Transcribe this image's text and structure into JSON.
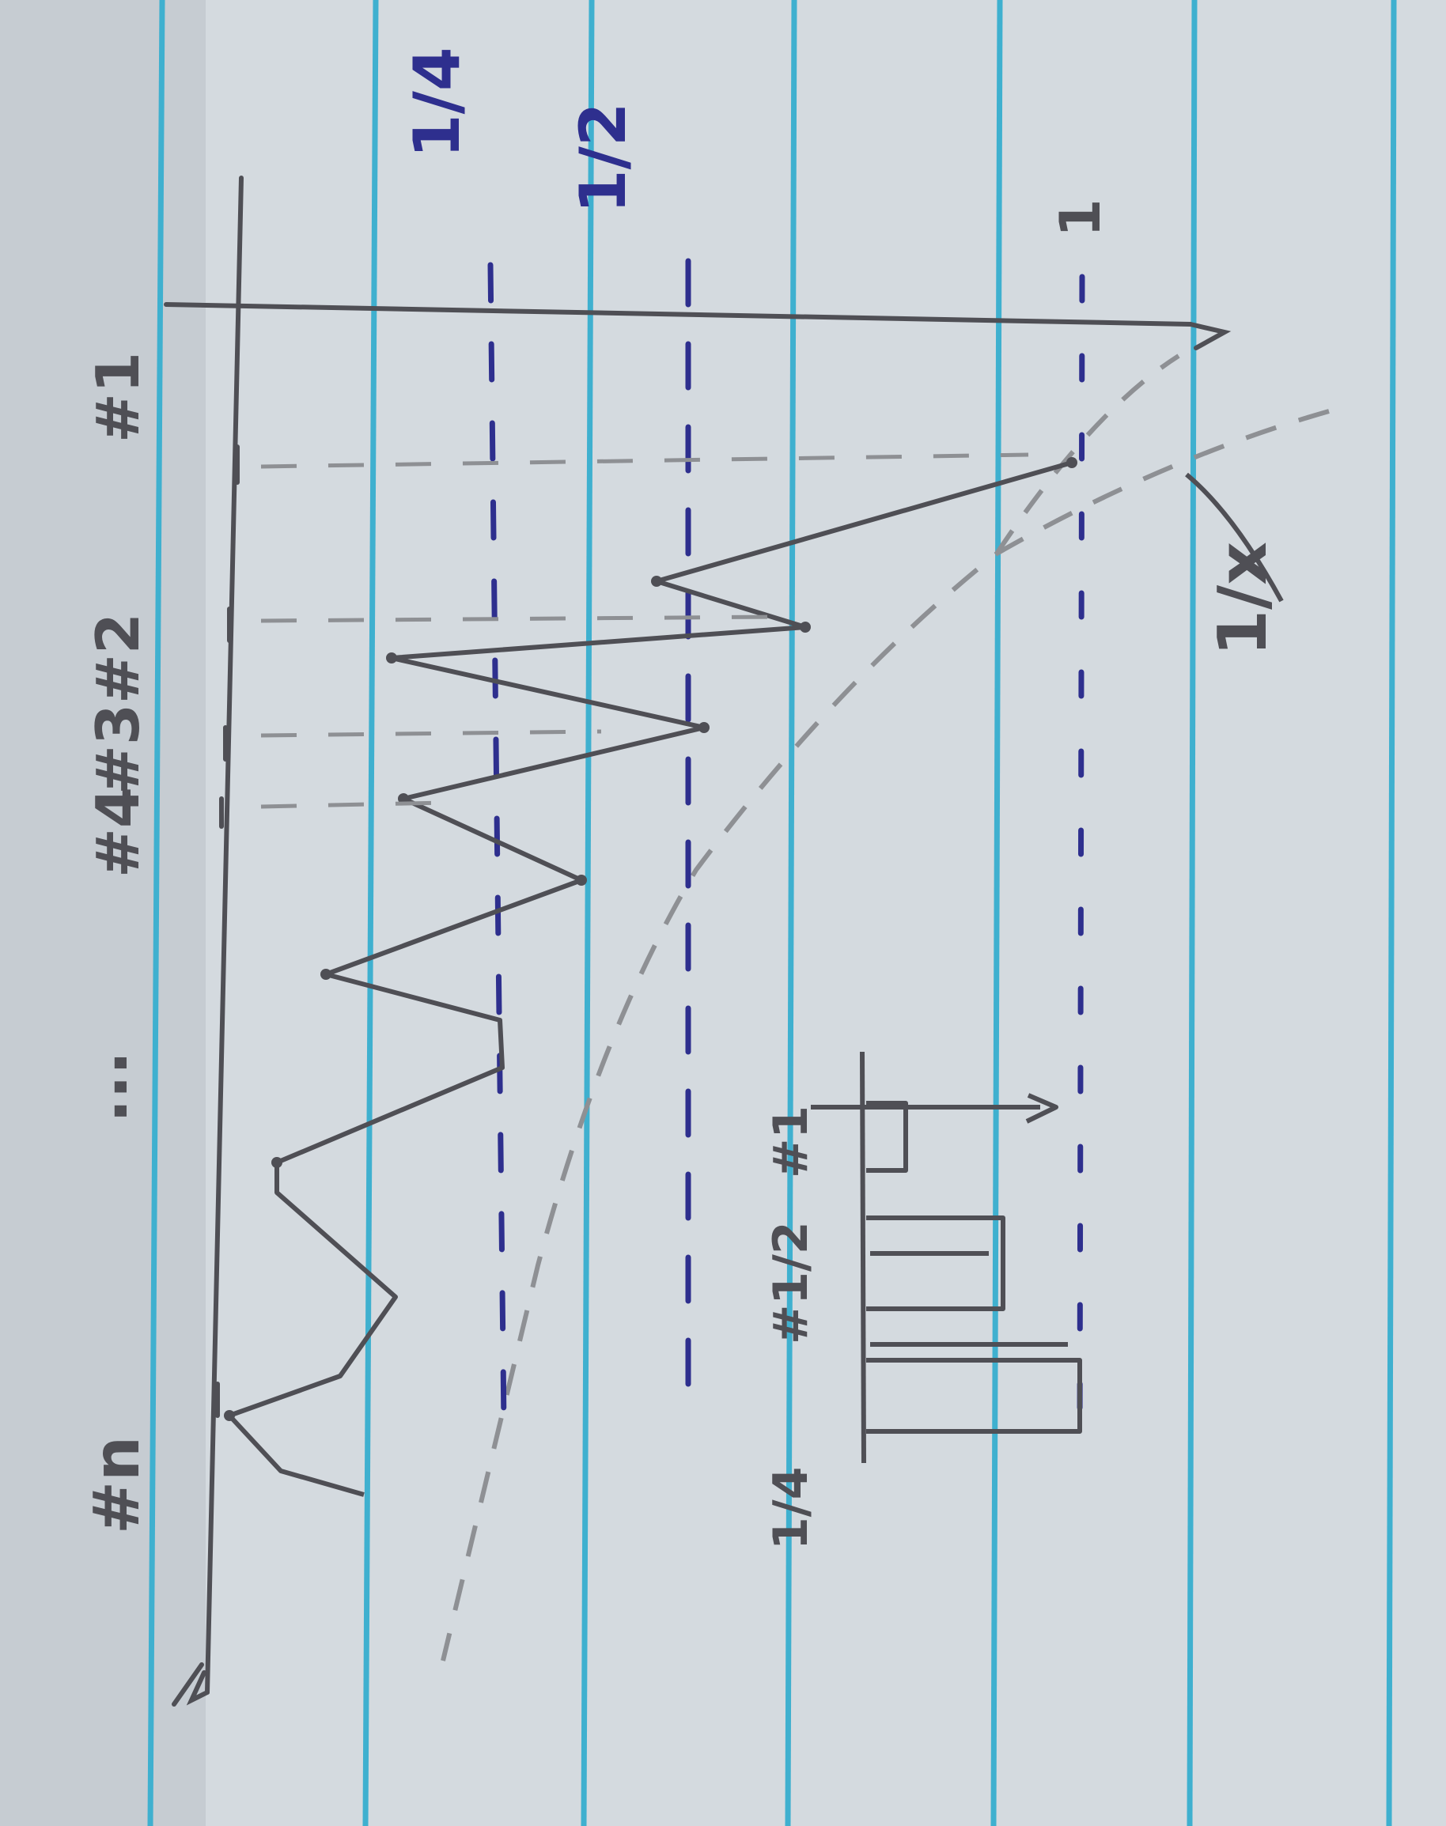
{
  "palette": {
    "paper": "#d4dadf",
    "rule_line": "#3fb0cf",
    "pencil": "#4f4f55",
    "pencil_light": "#8e9094",
    "ink_blue": "#2e2f8e"
  },
  "labels": {
    "y_one": "1",
    "y_half": "1/2",
    "y_quarter": "1/4",
    "curve": "1/x",
    "spike_1": "#1",
    "spike_2": "#2",
    "spike_3": "#3",
    "spike_4": "#4",
    "ellipsis": "...",
    "spike_n": "#n",
    "inset_1": "#1",
    "inset_half": "#1/2",
    "inset_quarter": "1/4"
  }
}
